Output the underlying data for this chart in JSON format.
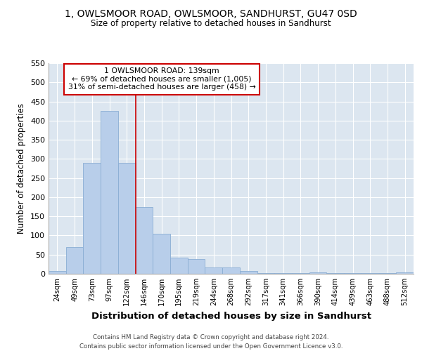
{
  "title": "1, OWLSMOOR ROAD, OWLSMOOR, SANDHURST, GU47 0SD",
  "subtitle": "Size of property relative to detached houses in Sandhurst",
  "xlabel": "Distribution of detached houses by size in Sandhurst",
  "ylabel": "Number of detached properties",
  "categories": [
    "24sqm",
    "49sqm",
    "73sqm",
    "97sqm",
    "122sqm",
    "146sqm",
    "170sqm",
    "195sqm",
    "219sqm",
    "244sqm",
    "268sqm",
    "292sqm",
    "317sqm",
    "341sqm",
    "366sqm",
    "390sqm",
    "414sqm",
    "439sqm",
    "463sqm",
    "488sqm",
    "512sqm"
  ],
  "values": [
    7,
    70,
    290,
    425,
    290,
    175,
    105,
    43,
    38,
    16,
    16,
    7,
    2,
    1,
    1,
    4,
    1,
    1,
    1,
    1,
    3
  ],
  "bar_color": "#b8ceea",
  "bar_edge_color": "#8aadd4",
  "annotation_label": "1 OWLSMOOR ROAD: 139sqm",
  "annotation_line1": "← 69% of detached houses are smaller (1,005)",
  "annotation_line2": "31% of semi-detached houses are larger (458) →",
  "marker_color": "#cc0000",
  "background_color": "#dce6f0",
  "grid_color": "#ffffff",
  "footer_line1": "Contains HM Land Registry data © Crown copyright and database right 2024.",
  "footer_line2": "Contains public sector information licensed under the Open Government Licence v3.0.",
  "ylim": [
    0,
    550
  ],
  "yticks": [
    0,
    50,
    100,
    150,
    200,
    250,
    300,
    350,
    400,
    450,
    500,
    550
  ]
}
